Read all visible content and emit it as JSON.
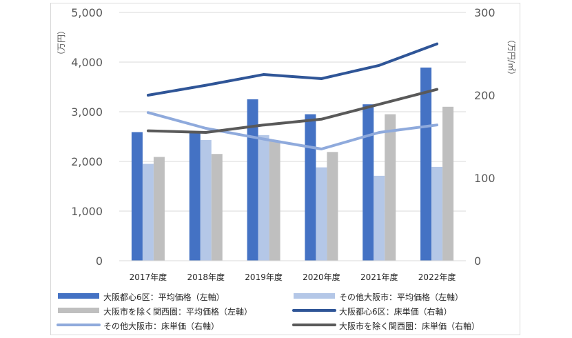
{
  "chart_data": {
    "type": "bar",
    "categories": [
      "2017年度",
      "2018年度",
      "2019年度",
      "2020年度",
      "2021年度",
      "2022年度"
    ],
    "left_axis": {
      "label": "（万円）",
      "ylim": [
        0,
        5000
      ],
      "ticks": [
        "0",
        "1,000",
        "2,000",
        "3,000",
        "4,000",
        "5,000"
      ]
    },
    "right_axis": {
      "label": "（万円/㎡）",
      "ylim": [
        0,
        300
      ],
      "ticks": [
        "0",
        "100",
        "200",
        "300"
      ]
    },
    "grid": true,
    "legend_position": "bottom",
    "series": [
      {
        "name": "大阪都心6区：平均価格（左軸）",
        "type": "bar",
        "axis": "left",
        "color": "#4472c4",
        "values": [
          2590,
          2600,
          3250,
          2950,
          3150,
          3890
        ]
      },
      {
        "name": "その他大阪市：平均価格（左軸）",
        "type": "bar",
        "axis": "left",
        "color": "#b4c7e7",
        "values": [
          1950,
          2430,
          2530,
          1880,
          1710,
          1890
        ]
      },
      {
        "name": "大阪市を除く関西圏：平均価格（左軸）",
        "type": "bar",
        "axis": "left",
        "color": "#bfbfbf",
        "values": [
          2090,
          2150,
          2420,
          2190,
          2950,
          3100
        ]
      },
      {
        "name": "大阪都心6区：床単価（右軸）",
        "type": "line",
        "axis": "right",
        "color": "#2f5597",
        "values": [
          200,
          212,
          225,
          220,
          236,
          262
        ]
      },
      {
        "name": "その他大阪市：床単価（右軸）",
        "type": "line",
        "axis": "right",
        "color": "#8faadc",
        "values": [
          179,
          160,
          147,
          135,
          155,
          164
        ]
      },
      {
        "name": "大阪市を除く関西圏：床単価（右軸）",
        "type": "line",
        "axis": "right",
        "color": "#595959",
        "values": [
          157,
          155,
          164,
          171,
          189,
          207
        ]
      }
    ]
  }
}
